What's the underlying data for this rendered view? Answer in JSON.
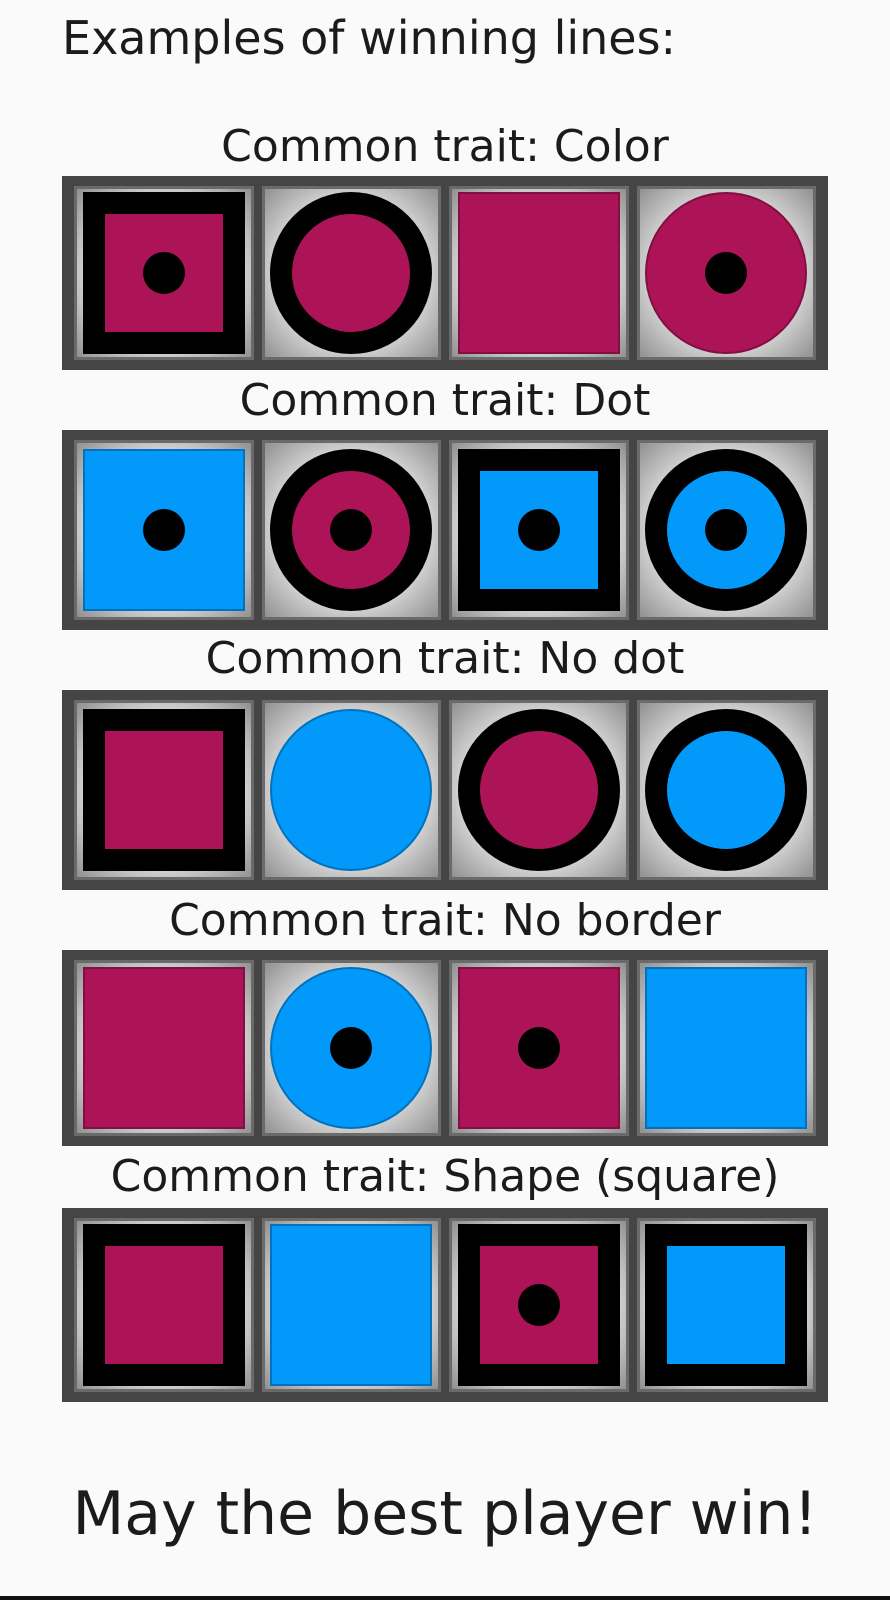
{
  "heading": "Examples of winning lines:",
  "colors": {
    "magenta": "#ad1457",
    "blue": "#0399fb"
  },
  "lines": [
    {
      "caption": "Common trait: Color",
      "pieces": [
        {
          "shape": "square",
          "color": "magenta",
          "border": true,
          "dot": true
        },
        {
          "shape": "circle",
          "color": "magenta",
          "border": true,
          "dot": false
        },
        {
          "shape": "square",
          "color": "magenta",
          "border": false,
          "dot": false
        },
        {
          "shape": "circle",
          "color": "magenta",
          "border": false,
          "dot": true
        }
      ]
    },
    {
      "caption": "Common trait: Dot",
      "pieces": [
        {
          "shape": "square",
          "color": "blue",
          "border": false,
          "dot": true
        },
        {
          "shape": "circle",
          "color": "magenta",
          "border": true,
          "dot": true
        },
        {
          "shape": "square",
          "color": "blue",
          "border": true,
          "dot": true
        },
        {
          "shape": "circle",
          "color": "blue",
          "border": true,
          "dot": true
        }
      ]
    },
    {
      "caption": "Common trait: No dot",
      "pieces": [
        {
          "shape": "square",
          "color": "magenta",
          "border": true,
          "dot": false
        },
        {
          "shape": "circle",
          "color": "blue",
          "border": false,
          "dot": false
        },
        {
          "shape": "circle",
          "color": "magenta",
          "border": true,
          "dot": false
        },
        {
          "shape": "circle",
          "color": "blue",
          "border": true,
          "dot": false
        }
      ]
    },
    {
      "caption": "Common trait: No border",
      "pieces": [
        {
          "shape": "square",
          "color": "magenta",
          "border": false,
          "dot": false
        },
        {
          "shape": "circle",
          "color": "blue",
          "border": false,
          "dot": true
        },
        {
          "shape": "square",
          "color": "magenta",
          "border": false,
          "dot": true
        },
        {
          "shape": "square",
          "color": "blue",
          "border": false,
          "dot": false
        }
      ]
    },
    {
      "caption": "Common trait: Shape (square)",
      "pieces": [
        {
          "shape": "square",
          "color": "magenta",
          "border": true,
          "dot": false
        },
        {
          "shape": "square",
          "color": "blue",
          "border": false,
          "dot": false
        },
        {
          "shape": "square",
          "color": "magenta",
          "border": true,
          "dot": true
        },
        {
          "shape": "square",
          "color": "blue",
          "border": true,
          "dot": false
        }
      ]
    }
  ],
  "closing": "May the best player win!"
}
